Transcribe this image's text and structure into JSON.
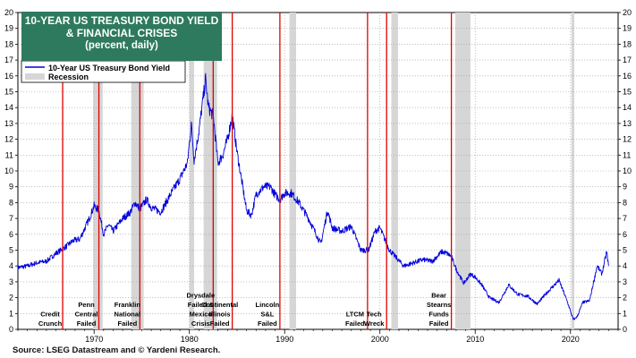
{
  "title": {
    "line1": "10-YEAR US TREASURY BOND YIELD",
    "line2": "& FINANCIAL CRISES",
    "line3": "(percent, daily)"
  },
  "legend": {
    "series": "10-Year US Treasury Bond Yield",
    "recession": "Recession"
  },
  "source": "Source: LSEG Datastream and © Yardeni Research.",
  "colors": {
    "series": "#0000dd",
    "recession": "#d6d6d6",
    "crisis_line": "#e00000",
    "title_bg": "#2e7a5e"
  },
  "chart_data": {
    "type": "line",
    "title": "10-YEAR US TREASURY BOND YIELD & FINANCIAL CRISES",
    "subtitle": "(percent, daily)",
    "xlim": [
      1962,
      2025
    ],
    "ylim": [
      0,
      20
    ],
    "yticks": [
      0,
      1,
      2,
      3,
      4,
      5,
      6,
      7,
      8,
      9,
      10,
      11,
      12,
      13,
      14,
      15,
      16,
      17,
      18,
      19,
      20
    ],
    "xticks": [
      1970,
      1980,
      1990,
      2000,
      2010,
      2020
    ],
    "y_axis_both_sides": true,
    "grid": "dotted",
    "legend_position": "top-left",
    "series": [
      {
        "name": "10-Year US Treasury Bond Yield",
        "x": [
          1962.0,
          1963.0,
          1964.0,
          1965.0,
          1966.0,
          1967.0,
          1967.8,
          1968.5,
          1969.5,
          1970.0,
          1970.5,
          1971.0,
          1971.5,
          1972.0,
          1973.0,
          1973.8,
          1974.3,
          1974.8,
          1975.5,
          1976.0,
          1977.0,
          1978.0,
          1979.0,
          1979.8,
          1980.2,
          1980.5,
          1981.0,
          1981.7,
          1982.0,
          1982.5,
          1983.0,
          1983.5,
          1984.0,
          1984.5,
          1985.0,
          1986.0,
          1986.5,
          1987.0,
          1987.8,
          1988.5,
          1989.0,
          1989.5,
          1990.0,
          1990.7,
          1991.5,
          1992.5,
          1993.8,
          1994.5,
          1995.0,
          1996.0,
          1997.0,
          1998.0,
          1998.8,
          1999.5,
          2000.0,
          2001.0,
          2002.5,
          2003.5,
          2004.5,
          2005.5,
          2006.5,
          2007.0,
          2007.5,
          2008.0,
          2008.8,
          2009.5,
          2010.0,
          2010.7,
          2011.5,
          2012.5,
          2013.5,
          2014.5,
          2015.5,
          2016.5,
          2017.5,
          2018.8,
          2019.7,
          2020.3,
          2020.7,
          2021.3,
          2022.0,
          2022.8,
          2023.3,
          2023.8,
          2024.0
        ],
        "y": [
          3.9,
          4.0,
          4.2,
          4.3,
          4.8,
          5.2,
          5.6,
          5.7,
          7.0,
          7.8,
          7.5,
          6.0,
          6.6,
          6.2,
          7.0,
          7.4,
          8.0,
          7.6,
          8.2,
          7.7,
          7.4,
          8.5,
          9.5,
          10.5,
          13.0,
          10.7,
          12.5,
          15.8,
          14.0,
          13.5,
          10.5,
          11.0,
          12.0,
          13.5,
          11.2,
          7.5,
          7.2,
          8.5,
          9.0,
          9.0,
          8.5,
          8.2,
          8.6,
          8.6,
          8.0,
          7.0,
          5.4,
          7.5,
          6.4,
          6.2,
          6.5,
          5.0,
          5.0,
          6.2,
          6.4,
          5.0,
          4.0,
          4.2,
          4.4,
          4.3,
          4.9,
          4.8,
          4.6,
          3.8,
          2.9,
          3.5,
          3.3,
          2.8,
          2.0,
          1.7,
          2.8,
          2.2,
          2.1,
          1.6,
          2.3,
          3.1,
          1.7,
          0.6,
          0.8,
          1.7,
          1.8,
          4.0,
          3.5,
          4.9,
          4.0
        ]
      }
    ],
    "recessions": [
      [
        1969.9,
        1970.9
      ],
      [
        1973.9,
        1975.2
      ],
      [
        1980.0,
        1980.5
      ],
      [
        1981.5,
        1982.9
      ],
      [
        1990.5,
        1991.2
      ],
      [
        2001.2,
        2001.9
      ],
      [
        2007.9,
        2009.5
      ],
      [
        2020.1,
        2020.4
      ]
    ],
    "crises": [
      {
        "x": 1966.7,
        "lines": [
          "Credit",
          "Crunch"
        ]
      },
      {
        "x": 1970.5,
        "lines": [
          "Penn",
          "Central",
          "Failed"
        ]
      },
      {
        "x": 1974.8,
        "lines": [
          "Franklin",
          "National",
          "Failed"
        ]
      },
      {
        "x": 1982.5,
        "lines": [
          "Drysdale",
          "Failed &",
          "Mexico",
          "Crisis"
        ]
      },
      {
        "x": 1984.5,
        "lines": [
          "Continental",
          "Illinois",
          "Failed"
        ]
      },
      {
        "x": 1989.5,
        "lines": [
          "Lincoln",
          "S&L",
          "Failed"
        ]
      },
      {
        "x": 1998.7,
        "lines": [
          "LTCM",
          "Failed"
        ]
      },
      {
        "x": 2000.7,
        "lines": [
          "Tech",
          "Wreck"
        ]
      },
      {
        "x": 2007.5,
        "lines": [
          "Bear",
          "Stearns",
          "Funds",
          "Failed"
        ]
      }
    ]
  }
}
